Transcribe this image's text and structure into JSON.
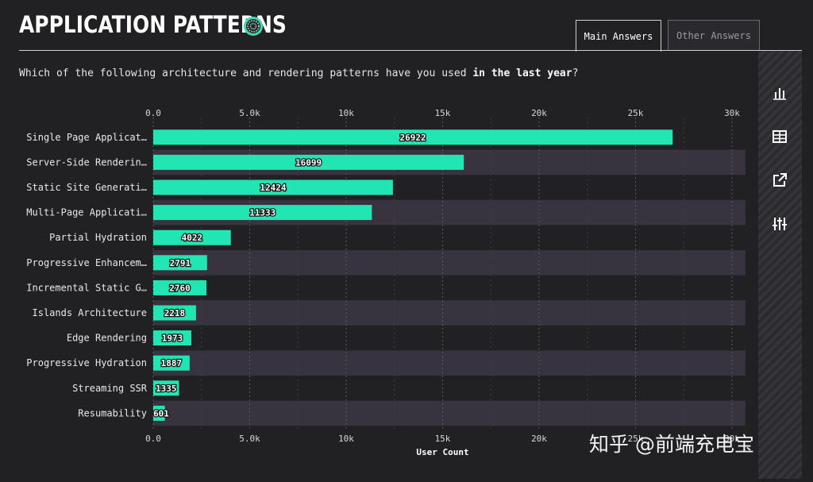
{
  "header": {
    "title": "APPLICATION PATTERNS",
    "tabs": [
      {
        "label": "Main Answers",
        "active": true
      },
      {
        "label": "Other Answers",
        "active": false
      }
    ]
  },
  "question": {
    "prefix": "Which of the following architecture and rendering patterns have you used ",
    "emphasis": "in the last year",
    "suffix": "?"
  },
  "sidebar": {
    "buttons": [
      {
        "icon": "bar-chart-icon"
      },
      {
        "icon": "table-icon"
      },
      {
        "icon": "external-link-icon"
      },
      {
        "icon": "sliders-icon"
      }
    ]
  },
  "watermark": "知乎 @前端充电宝",
  "colors": {
    "background": "#212022",
    "bar": "#21e6b3",
    "stripe": "#37343f",
    "text": "#e9e9e9"
  },
  "chart_data": {
    "type": "bar",
    "orientation": "horizontal",
    "categories": [
      "Single Page Applicat…",
      "Server-Side Renderin…",
      "Static Site Generati…",
      "Multi-Page Applicati…",
      "Partial Hydration",
      "Progressive Enhancem…",
      "Incremental Static G…",
      "Islands Architecture",
      "Edge Rendering",
      "Progressive Hydration",
      "Streaming SSR",
      "Resumability"
    ],
    "values": [
      26922,
      16099,
      12424,
      11333,
      4022,
      2791,
      2760,
      2218,
      1973,
      1887,
      1335,
      601
    ],
    "xlabel": "User Count",
    "xlim": [
      0,
      30000
    ],
    "xticks": [
      0,
      5000,
      10000,
      15000,
      20000,
      25000,
      30000
    ],
    "xtick_labels": [
      "0.0",
      "5.0k",
      "10k",
      "15k",
      "20k",
      "25k",
      "30k"
    ],
    "grid": true,
    "data_labels": true
  }
}
